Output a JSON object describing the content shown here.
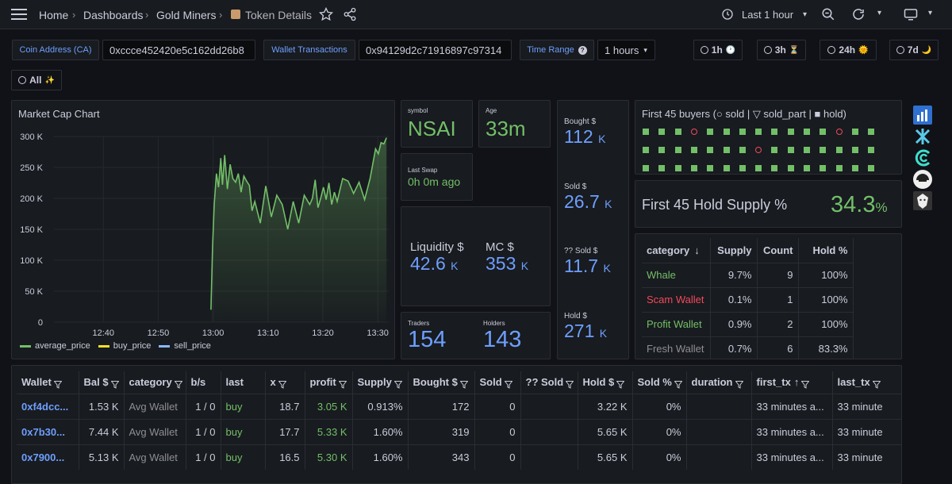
{
  "breadcrumb": {
    "home": "Home",
    "dashboards": "Dashboards",
    "folder": "Gold Miners",
    "page": "Token Details"
  },
  "time_picker": {
    "label": "Last 1 hour"
  },
  "variables": {
    "coin_label": "Coin Address (CA)",
    "coin_value": "0xccce452420e5c162dd26b8",
    "wallet_label": "Wallet Transactions",
    "wallet_value": "0x94129d2c71916897c97314",
    "time_label": "Time Range",
    "time_value": "1 hours"
  },
  "links": [
    {
      "label": "1h",
      "emoji": "🕐"
    },
    {
      "label": "3h",
      "emoji": "⏳"
    },
    {
      "label": "24h",
      "emoji": "🌞"
    },
    {
      "label": "7d",
      "emoji": "🌙"
    },
    {
      "label": "All",
      "emoji": "✨"
    }
  ],
  "chart_data": {
    "type": "line",
    "title": "Market Cap Chart",
    "x_ticks": [
      "12:40",
      "12:50",
      "13:00",
      "13:10",
      "13:20",
      "13:30"
    ],
    "y_ticks": [
      "0",
      "50 K",
      "100 K",
      "150 K",
      "200 K",
      "250 K",
      "300 K"
    ],
    "ylim": [
      0,
      300000
    ],
    "xlim": [
      "12:31",
      "13:32"
    ],
    "series": [
      {
        "name": "average_price",
        "color": "#73bf69",
        "x_minutes": [
          0.0,
          0.3,
          0.6,
          1.0,
          1.4,
          1.8,
          2.1,
          2.5,
          3.0,
          3.5,
          4.0,
          4.5,
          5.0,
          5.5,
          6.0,
          6.5,
          7.0,
          7.5,
          8.0,
          9.0,
          10.0,
          11.0,
          12.0,
          13.0,
          14.0,
          15.0,
          16.0,
          17.0,
          18.0,
          18.5,
          19.0,
          19.5,
          20.0,
          20.5,
          21.0,
          21.5,
          22.0,
          22.5,
          23.0,
          24.0,
          25.0,
          26.0,
          27.0,
          28.0,
          29.0,
          30.0,
          30.5,
          31.0,
          31.5,
          32.0
        ],
        "values": [
          20000,
          120000,
          190000,
          240000,
          218000,
          265000,
          222000,
          270000,
          215000,
          255000,
          232000,
          226000,
          240000,
          210000,
          236000,
          228000,
          221000,
          180000,
          195000,
          160000,
          220000,
          170000,
          205000,
          190000,
          150000,
          195000,
          160000,
          205000,
          190000,
          200000,
          230000,
          185000,
          200000,
          218000,
          198000,
          225000,
          190000,
          210000,
          195000,
          232000,
          228000,
          208000,
          226000,
          198000,
          232000,
          280000,
          272000,
          290000,
          288000,
          298000
        ]
      },
      {
        "name": "buy_price",
        "color": "#fade2a",
        "x_minutes": [],
        "values": []
      },
      {
        "name": "sell_price",
        "color": "#8ab8ff",
        "x_minutes": [],
        "values": []
      }
    ]
  },
  "stats": {
    "symbol_label": "symbol",
    "symbol": "NSAI",
    "age_label": "Age",
    "age": "33m",
    "last_swap_label": "Last Swap",
    "last_swap": "0h 0m ago",
    "liquidity_label": "Liquidity $",
    "liquidity_value": "42.6",
    "liquidity_unit": "K",
    "mc_label": "MC $",
    "mc_value": "353",
    "mc_unit": "K",
    "traders_label": "Traders",
    "traders": "154",
    "holders_label": "Holders",
    "holders": "143",
    "bought_label": "Bought $",
    "bought_value": "112",
    "bought_unit": "K",
    "sold_label": "Sold $",
    "sold_value": "26.7",
    "sold_unit": "K",
    "unk_sold_label": "?? Sold $",
    "unk_sold_value": "11.7",
    "unk_sold_unit": "K",
    "hold_label": "Hold $",
    "hold_value": "271",
    "hold_unit": "K"
  },
  "buyers": {
    "title": "First 45 buyers (○ sold | ▽ sold_part | ■ hold)",
    "rows": [
      [
        "hold",
        "hold",
        "hold",
        "sold",
        "hold",
        "hold",
        "hold",
        "hold",
        "hold",
        "hold",
        "hold",
        "hold",
        "sold",
        "hold",
        "hold"
      ],
      [
        "hold",
        "hold",
        "hold",
        "hold",
        "hold",
        "hold",
        "hold",
        "sold",
        "hold",
        "hold",
        "hold",
        "hold",
        "hold",
        "hold",
        "hold"
      ],
      [
        "hold",
        "hold",
        "hold",
        "hold",
        "hold",
        "hold",
        "hold",
        "hold",
        "hold",
        "hold",
        "hold",
        "hold",
        "hold",
        "hold",
        "hold"
      ]
    ]
  },
  "hold_supply": {
    "label": "First 45 Hold Supply %",
    "value": "34.3",
    "unit": "%"
  },
  "category_table": {
    "headers": [
      "category",
      "Supply",
      "Count",
      "Hold %"
    ],
    "rows": [
      {
        "category": "Whale",
        "color": "#73bf69",
        "supply": "9.7%",
        "count": "9",
        "hold": "100%"
      },
      {
        "category": "Scam Wallet",
        "color": "#f2495c",
        "supply": "0.1%",
        "count": "1",
        "hold": "100%"
      },
      {
        "category": "Profit Wallet",
        "color": "#73bf69",
        "supply": "0.9%",
        "count": "2",
        "hold": "100%"
      },
      {
        "category": "Fresh Wallet",
        "color": "#8e8e95",
        "supply": "0.7%",
        "count": "6",
        "hold": "83.3%"
      }
    ]
  },
  "wallet_table": {
    "headers": [
      "Wallet",
      "Bal $",
      "category",
      "b/s",
      "last",
      "x",
      "profit",
      "Supply",
      "Bought $",
      "Sold",
      "?? Sold",
      "Hold $",
      "Sold %",
      "duration",
      "first_tx",
      "last_tx"
    ],
    "rows": [
      {
        "wallet": "0xf4dcc...",
        "bal": "1.53 K",
        "category": "Avg Wallet",
        "bs": "1 / 0",
        "last": "buy",
        "x": "18.7",
        "profit": "3.05 K",
        "supply": "0.913%",
        "bought": "172",
        "sold": "0",
        "unk_sold": "",
        "hold": "3.22 K",
        "sold_pct": "0%",
        "duration": "",
        "first_tx": "33 minutes a...",
        "last_tx": "33 minute"
      },
      {
        "wallet": "0x7b30...",
        "bal": "7.44 K",
        "category": "Avg Wallet",
        "bs": "1 / 0",
        "last": "buy",
        "x": "17.7",
        "profit": "5.33 K",
        "supply": "1.60%",
        "bought": "319",
        "sold": "0",
        "unk_sold": "",
        "hold": "5.65 K",
        "sold_pct": "0%",
        "duration": "",
        "first_tx": "33 minutes a...",
        "last_tx": "33 minute"
      },
      {
        "wallet": "0x7900...",
        "bal": "5.13 K",
        "category": "Avg Wallet",
        "bs": "1 / 0",
        "last": "buy",
        "x": "16.5",
        "profit": "5.30 K",
        "supply": "1.60%",
        "bought": "343",
        "sold": "0",
        "unk_sold": "",
        "hold": "5.65 K",
        "sold_pct": "0%",
        "duration": "",
        "first_tx": "33 minutes a...",
        "last_tx": "33 minute"
      }
    ]
  },
  "colors": {
    "accent_blue": "#6e9fff",
    "green": "#73bf69",
    "red": "#f2495c",
    "yellow": "#fade2a"
  }
}
